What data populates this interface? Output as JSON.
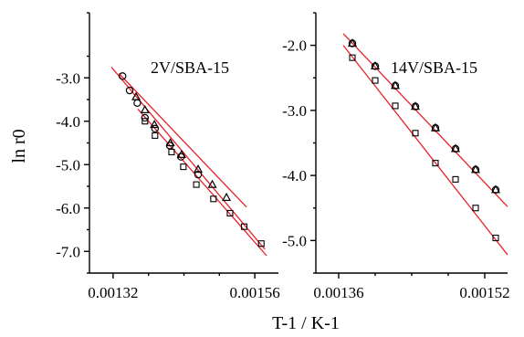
{
  "chart_data": [
    {
      "type": "scatter",
      "panel_label": "2V/SBA-15",
      "ylabel": "ln r0",
      "xlabel": "T-1 / K-1",
      "xlim": [
        0.00128,
        0.0016
      ],
      "ylim": [
        -7.5,
        -1.5
      ],
      "x_ticks": [
        "0.00132",
        "0.00156"
      ],
      "y_ticks": [
        "-3.0",
        "-4.0",
        "-5.0",
        "-6.0",
        "-7.0"
      ],
      "grid": false,
      "colors": {
        "fit_line": "#e8202a",
        "marker": "#000000"
      },
      "series": [
        {
          "marker": "circle",
          "x": [
            0.001336,
            0.001348,
            0.001361,
            0.001374,
            0.001391,
            0.001416,
            0.001435,
            0.001464
          ],
          "y": [
            -2.96,
            -3.29,
            -3.58,
            -3.92,
            -4.17,
            -4.56,
            -4.82,
            -5.23
          ]
        },
        {
          "marker": "triangle",
          "x": [
            0.001359,
            0.001374,
            0.00139,
            0.001417,
            0.001436,
            0.001464,
            0.001488,
            0.001512
          ],
          "y": [
            -3.44,
            -3.74,
            -4.08,
            -4.5,
            -4.77,
            -5.11,
            -5.46,
            -5.76
          ]
        },
        {
          "marker": "square",
          "x": [
            0.001374,
            0.001391,
            0.001419,
            0.001439,
            0.001461,
            0.00149,
            0.001518,
            0.001542,
            0.001571
          ],
          "y": [
            -4.0,
            -4.33,
            -4.71,
            -5.05,
            -5.46,
            -5.79,
            -6.12,
            -6.43,
            -6.82
          ]
        }
      ],
      "fit_lines": [
        {
          "x": [
            0.001317,
            0.001577
          ],
          "y": [
            -2.75,
            -6.95
          ]
        },
        {
          "x": [
            0.00133,
            0.001546
          ],
          "y": [
            -2.9,
            -5.98
          ]
        },
        {
          "x": [
            0.001362,
            0.00158
          ],
          "y": [
            -3.72,
            -7.1
          ]
        }
      ]
    },
    {
      "type": "scatter",
      "panel_label": "14V/SBA-15",
      "xlim": [
        0.001335,
        0.001545
      ],
      "ylim": [
        -5.5,
        -1.5
      ],
      "x_ticks": [
        "0.00136",
        "0.00152"
      ],
      "y_ticks": [
        "-2.0",
        "-3.0",
        "-4.0",
        "-5.0"
      ],
      "grid": false,
      "colors": {
        "fit_line": "#e8202a",
        "marker": "#000000"
      },
      "series": [
        {
          "marker": "circle",
          "x": [
            0.001375,
            0.0014,
            0.001422,
            0.001444,
            0.001466,
            0.001488,
            0.00151,
            0.001532
          ],
          "y": [
            -1.97,
            -2.32,
            -2.62,
            -2.94,
            -3.27,
            -3.59,
            -3.91,
            -4.22
          ]
        },
        {
          "marker": "triangle",
          "x": [
            0.001375,
            0.0014,
            0.001422,
            0.001444,
            0.001466,
            0.001488,
            0.00151,
            0.001532
          ],
          "y": [
            -1.97,
            -2.32,
            -2.62,
            -2.94,
            -3.27,
            -3.59,
            -3.91,
            -4.22
          ]
        },
        {
          "marker": "square",
          "x": [
            0.001375,
            0.0014,
            0.001422,
            0.001444,
            0.001466,
            0.001488,
            0.00151,
            0.001532
          ],
          "y": [
            -2.19,
            -2.54,
            -2.93,
            -3.35,
            -3.81,
            -4.06,
            -4.5,
            -4.96
          ]
        }
      ],
      "fit_lines": [
        {
          "x": [
            0.001365,
            0.001545
          ],
          "y": [
            -1.82,
            -4.48
          ]
        },
        {
          "x": [
            0.001365,
            0.001545
          ],
          "y": [
            -2.0,
            -5.22
          ]
        }
      ]
    }
  ]
}
